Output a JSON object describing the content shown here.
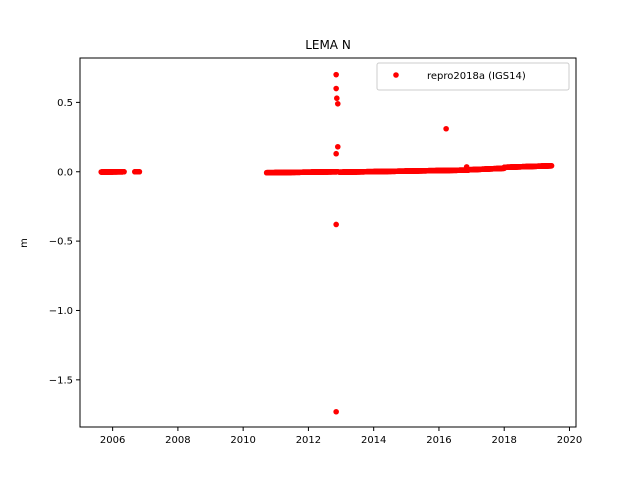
{
  "chart_data": {
    "type": "scatter",
    "title": "LEMA N",
    "xlabel": "",
    "ylabel": "m",
    "xlim": [
      2005.0,
      2020.2
    ],
    "ylim": [
      -1.84,
      0.82
    ],
    "xticks": [
      2006,
      2008,
      2010,
      2012,
      2014,
      2016,
      2018,
      2020
    ],
    "xtick_labels": [
      "2006",
      "2008",
      "2010",
      "2012",
      "2014",
      "2016",
      "2018",
      "2020"
    ],
    "yticks": [
      0.5,
      0.0,
      -0.5,
      -1.0,
      -1.5
    ],
    "ytick_labels": [
      "0.5",
      "0.0",
      "−0.5",
      "−1.0",
      "−1.5"
    ],
    "grid": false,
    "legend_position": "top-right",
    "series": [
      {
        "name": "repro2018a (IGS14)",
        "color": "#ff0000",
        "marker": "circle",
        "segments": [
          {
            "x_start": 2005.65,
            "x_end": 2006.35,
            "y_start": -0.002,
            "y_end": 0.0,
            "step": 0.006
          },
          {
            "x_start": 2006.68,
            "x_end": 2006.82,
            "y_start": 0.0,
            "y_end": 0.0,
            "step": 0.006
          },
          {
            "x_start": 2010.72,
            "x_end": 2012.9,
            "y_start": -0.007,
            "y_end": 0.0,
            "step": 0.006
          },
          {
            "x_start": 2012.95,
            "x_end": 2014.8,
            "y_start": -0.003,
            "y_end": 0.004,
            "step": 0.006
          },
          {
            "x_start": 2014.8,
            "x_end": 2016.9,
            "y_start": 0.004,
            "y_end": 0.012,
            "step": 0.006
          },
          {
            "x_start": 2016.9,
            "x_end": 2018.0,
            "y_start": 0.014,
            "y_end": 0.025,
            "step": 0.006
          },
          {
            "x_start": 2018.0,
            "x_end": 2019.45,
            "y_start": 0.032,
            "y_end": 0.043,
            "step": 0.006
          }
        ],
        "outliers": [
          {
            "x": 2012.85,
            "y": 0.7
          },
          {
            "x": 2012.85,
            "y": 0.6
          },
          {
            "x": 2012.87,
            "y": 0.53
          },
          {
            "x": 2012.9,
            "y": 0.49
          },
          {
            "x": 2012.9,
            "y": 0.18
          },
          {
            "x": 2012.85,
            "y": 0.13
          },
          {
            "x": 2012.85,
            "y": -0.38
          },
          {
            "x": 2012.85,
            "y": -1.73
          },
          {
            "x": 2016.22,
            "y": 0.31
          },
          {
            "x": 2016.85,
            "y": 0.035
          }
        ]
      }
    ]
  }
}
